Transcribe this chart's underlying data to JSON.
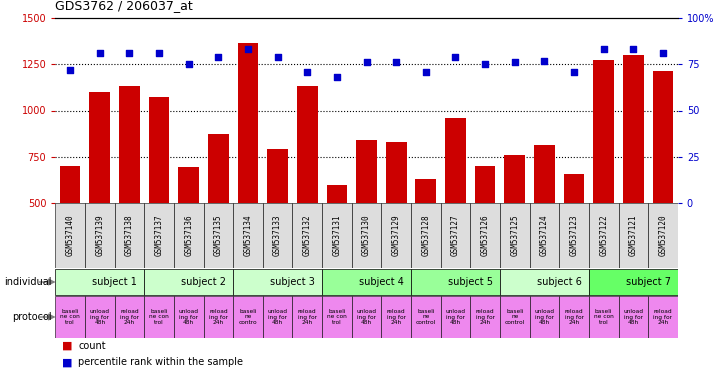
{
  "title": "GDS3762 / 206037_at",
  "samples": [
    "GSM537140",
    "GSM537139",
    "GSM537138",
    "GSM537137",
    "GSM537136",
    "GSM537135",
    "GSM537134",
    "GSM537133",
    "GSM537132",
    "GSM537131",
    "GSM537130",
    "GSM537129",
    "GSM537128",
    "GSM537127",
    "GSM537126",
    "GSM537125",
    "GSM537124",
    "GSM537123",
    "GSM537122",
    "GSM537121",
    "GSM537120"
  ],
  "counts": [
    700,
    1100,
    1130,
    1075,
    695,
    875,
    1365,
    790,
    1130,
    600,
    840,
    830,
    630,
    960,
    700,
    760,
    815,
    655,
    1275,
    1300,
    1215
  ],
  "percentiles": [
    72,
    81,
    81,
    81,
    75,
    79,
    83,
    79,
    71,
    68,
    76,
    76,
    71,
    79,
    75,
    76,
    77,
    71,
    83,
    83,
    81
  ],
  "ylim_left": [
    500,
    1500
  ],
  "ylim_right": [
    0,
    100
  ],
  "yticks_left": [
    500,
    750,
    1000,
    1250,
    1500
  ],
  "yticks_right": [
    0,
    25,
    50,
    75,
    100
  ],
  "bar_color": "#cc0000",
  "dot_color": "#0000cc",
  "subjects": [
    {
      "label": "subject 1",
      "start": 0,
      "end": 3
    },
    {
      "label": "subject 2",
      "start": 3,
      "end": 6
    },
    {
      "label": "subject 3",
      "start": 6,
      "end": 9
    },
    {
      "label": "subject 4",
      "start": 9,
      "end": 12
    },
    {
      "label": "subject 5",
      "start": 12,
      "end": 15
    },
    {
      "label": "subject 6",
      "start": 15,
      "end": 18
    },
    {
      "label": "subject 7",
      "start": 18,
      "end": 21
    }
  ],
  "subject_colors": [
    "#ccffcc",
    "#ccffcc",
    "#ccffcc",
    "#99ff99",
    "#99ff99",
    "#ccffcc",
    "#66ff66"
  ],
  "protocol_color": "#ee88ee",
  "prot_labels": [
    "baseli\nne con\ntrol",
    "unload\ning for\n48h",
    "reload\ning for\n24h",
    "baseli\nne con\ntrol",
    "unload\ning for\n48h",
    "reload\ning for\n24h",
    "baseli\nne\ncontro",
    "unload\ning for\n48h",
    "reload\ning for\n24h",
    "baseli\nne con\ntrol",
    "unload\ning for\n48h",
    "reload\ning for\n24h",
    "baseli\nne\ncontrol",
    "unload\ning for\n48h",
    "reload\ning for\n24h",
    "baseli\nne\ncontrol",
    "unload\ning for\n48h",
    "reload\ning for\n24h",
    "baseli\nne con\ntrol",
    "unload\ning for\n48h",
    "reload\ning for\n24h"
  ],
  "bg_color": "#ffffff",
  "label_color_left": "#cc0000",
  "label_color_right": "#0000cc",
  "grid_dotted_at": [
    750,
    1000,
    1250
  ],
  "xtick_bg": "#dddddd"
}
